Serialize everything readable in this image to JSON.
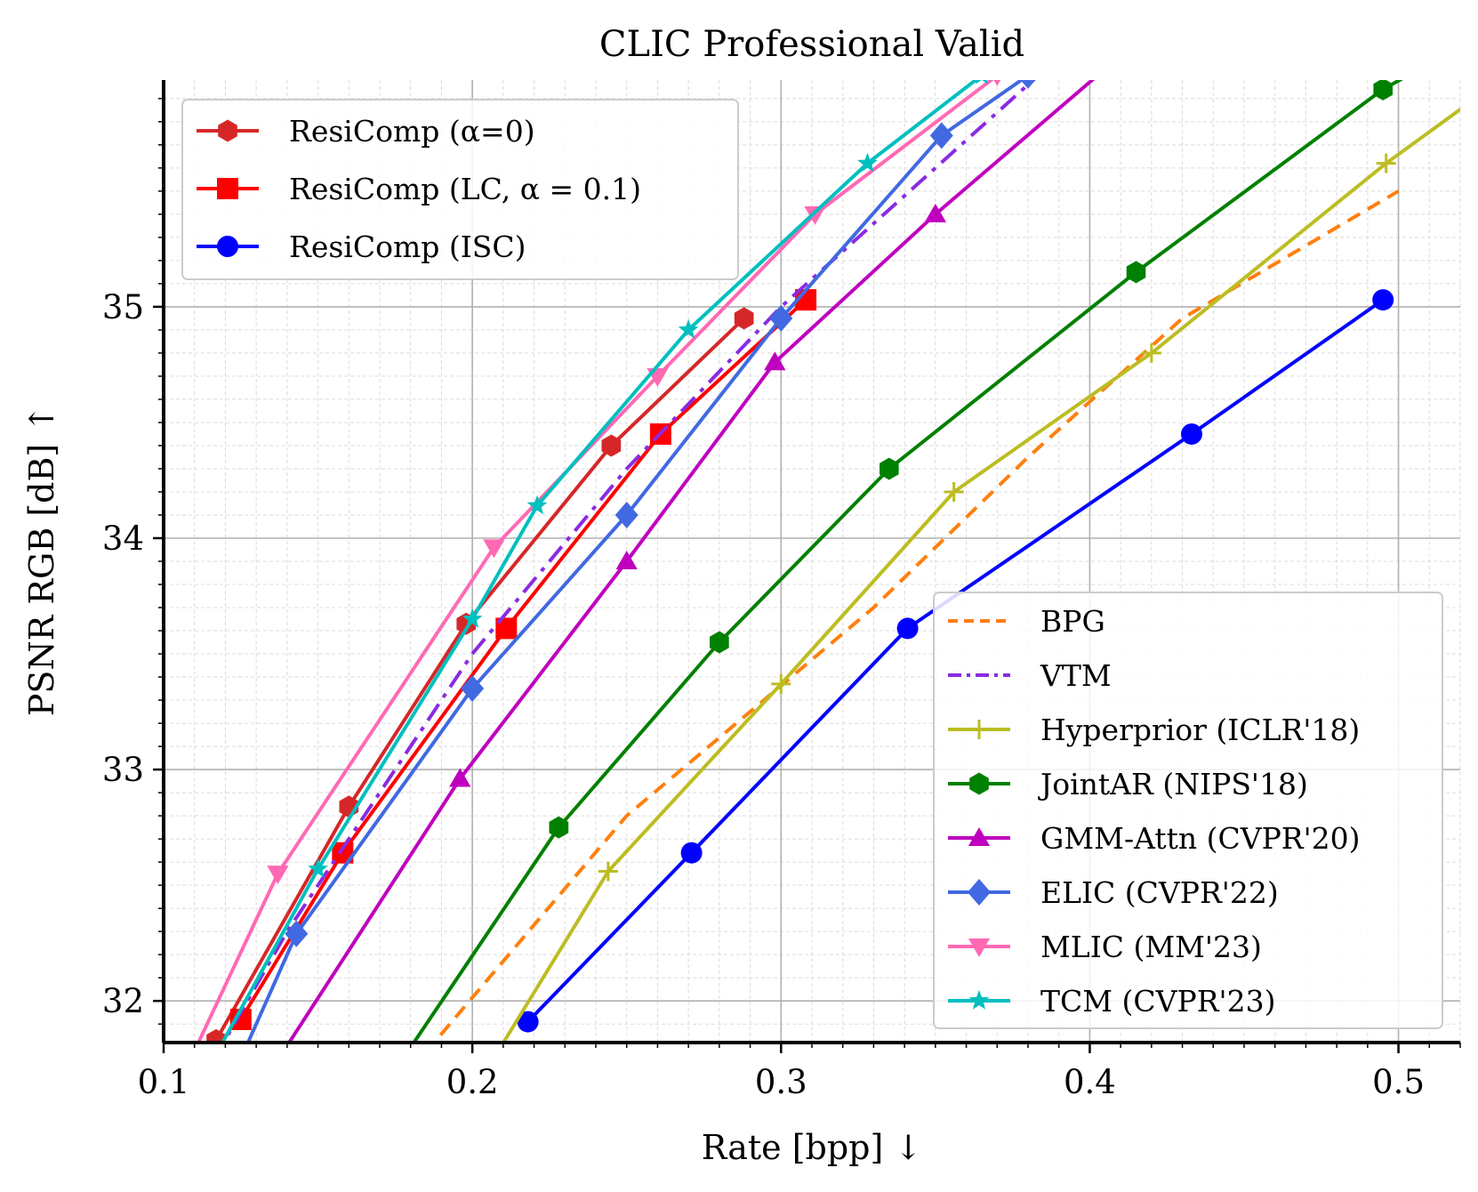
{
  "chart_data": {
    "type": "line",
    "title": "CLIC Professional Valid",
    "xlabel": "Rate [bpp] ↓",
    "ylabel": "PSNR RGB [dB] ↑",
    "xlim": [
      0.1,
      0.52
    ],
    "ylim": [
      31.82,
      35.98
    ],
    "xticks": [
      0.1,
      0.2,
      0.3,
      0.4,
      0.5
    ],
    "xtick_labels": [
      "0.1",
      "0.2",
      "0.3",
      "0.4",
      "0.5"
    ],
    "yticks": [
      32,
      33,
      34,
      35
    ],
    "ytick_labels": [
      "32",
      "33",
      "34",
      "35"
    ],
    "grid": true,
    "legend_1_position": "upper-left",
    "legend_2_position": "lower-right",
    "series": [
      {
        "name": "ResiComp (α=0)",
        "legend": 1,
        "color": "#d62728",
        "marker": "hexagon",
        "dash": "",
        "x": [
          0.117,
          0.16,
          0.198,
          0.245,
          0.288
        ],
        "y": [
          31.83,
          32.84,
          33.63,
          34.4,
          34.95
        ]
      },
      {
        "name": "ResiComp (LC, α = 0.1)",
        "legend": 1,
        "color": "#ff0000",
        "marker": "square",
        "dash": "",
        "x": [
          0.125,
          0.158,
          0.211,
          0.261,
          0.308
        ],
        "y": [
          31.92,
          32.64,
          33.61,
          34.45,
          35.03
        ]
      },
      {
        "name": "ResiComp (ISC)",
        "legend": 1,
        "color": "#0000ff",
        "marker": "circle",
        "dash": "",
        "x": [
          0.218,
          0.271,
          0.341,
          0.433,
          0.495
        ],
        "y": [
          31.91,
          32.64,
          33.61,
          34.45,
          35.03
        ]
      },
      {
        "name": "BPG",
        "legend": 2,
        "color": "#ff7f0e",
        "marker": "none",
        "dash": "16 10",
        "x": [
          0.18,
          0.25,
          0.33,
          0.38,
          0.43,
          0.5
        ],
        "y": [
          31.7,
          32.8,
          33.7,
          34.35,
          34.95,
          35.5
        ]
      },
      {
        "name": "VTM",
        "legend": 2,
        "color": "#8a2be2",
        "marker": "none",
        "dash": "22 9 5 9",
        "x": [
          0.11,
          0.14,
          0.2,
          0.25,
          0.3,
          0.4
        ],
        "y": [
          31.6,
          32.3,
          33.5,
          34.3,
          35.0,
          36.2
        ]
      },
      {
        "name": "Hyperprior (ICLR'18)",
        "legend": 2,
        "color": "#bcbd22",
        "marker": "plus",
        "dash": "",
        "x": [
          0.2,
          0.244,
          0.3,
          0.356,
          0.42,
          0.496,
          0.53
        ],
        "y": [
          31.6,
          32.56,
          33.37,
          34.2,
          34.8,
          35.62,
          35.95
        ]
      },
      {
        "name": "JointAR (NIPS'18)",
        "legend": 2,
        "color": "#008000",
        "marker": "hexagon",
        "dash": "",
        "x": [
          0.175,
          0.228,
          0.28,
          0.335,
          0.415,
          0.495,
          0.53
        ],
        "y": [
          31.7,
          32.75,
          33.55,
          34.3,
          35.15,
          35.94,
          36.2
        ]
      },
      {
        "name": "GMM-Attn (CVPR'20)",
        "legend": 2,
        "color": "#bf00bf",
        "marker": "triangle-up",
        "dash": "",
        "x": [
          0.13,
          0.196,
          0.25,
          0.298,
          0.35,
          0.42
        ],
        "y": [
          31.6,
          32.96,
          33.9,
          34.76,
          35.4,
          36.2
        ]
      },
      {
        "name": "ELIC (CVPR'22)",
        "legend": 2,
        "color": "#4169e1",
        "marker": "diamond",
        "dash": "",
        "x": [
          0.12,
          0.143,
          0.2,
          0.25,
          0.3,
          0.352,
          0.38
        ],
        "y": [
          31.6,
          32.29,
          33.35,
          34.1,
          34.95,
          35.74,
          36.0
        ]
      },
      {
        "name": "MLIC (MM'23)",
        "legend": 2,
        "color": "#ff69b4",
        "marker": "triangle-down",
        "dash": "",
        "x": [
          0.1,
          0.137,
          0.207,
          0.26,
          0.311,
          0.37
        ],
        "y": [
          31.5,
          32.55,
          33.96,
          34.7,
          35.4,
          36.0
        ]
      },
      {
        "name": "TCM (CVPR'23)",
        "legend": 2,
        "color": "#00bfbf",
        "marker": "star",
        "dash": "",
        "x": [
          0.11,
          0.15,
          0.2,
          0.221,
          0.27,
          0.328,
          0.365
        ],
        "y": [
          31.6,
          32.57,
          33.65,
          34.14,
          34.9,
          35.62,
          36.0
        ]
      }
    ]
  }
}
